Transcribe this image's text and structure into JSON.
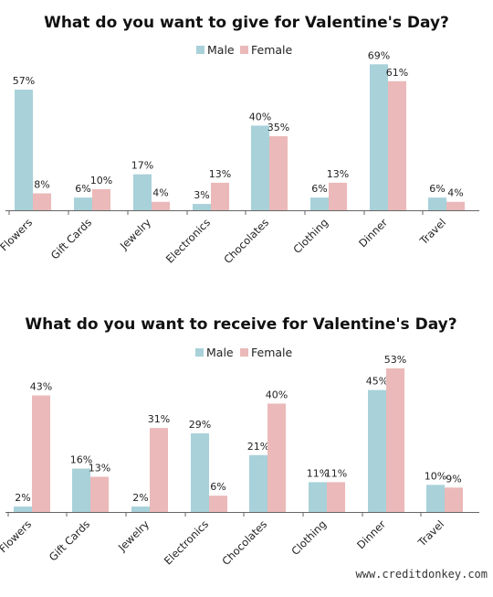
{
  "colors": {
    "male": "#a8d1d9",
    "female": "#ebb9b9"
  },
  "legend": {
    "male": "Male",
    "female": "Female"
  },
  "watermark": "www.creditdonkey.com",
  "chart_data": [
    {
      "type": "bar",
      "title": "What do you want to give for Valentine's Day?",
      "categories": [
        "Flowers",
        "Gift Cards",
        "Jewelry",
        "Electronics",
        "Chocolates",
        "Clothing",
        "Dinner",
        "Travel"
      ],
      "series": [
        {
          "name": "Male",
          "values": [
            57,
            6,
            17,
            3,
            40,
            6,
            69,
            6
          ]
        },
        {
          "name": "Female",
          "values": [
            8,
            10,
            4,
            13,
            35,
            13,
            61,
            4
          ]
        }
      ],
      "value_suffix": "%",
      "ylim": [
        0,
        70
      ],
      "grid": false,
      "legend_position": "top-center"
    },
    {
      "type": "bar",
      "title": "What do you want to receive for Valentine's Day?",
      "categories": [
        "Flowers",
        "Gift Cards",
        "Jewelry",
        "Electronics",
        "Chocolates",
        "Clothing",
        "Dinner",
        "Travel"
      ],
      "series": [
        {
          "name": "Male",
          "values": [
            2,
            16,
            2,
            29,
            21,
            11,
            45,
            10
          ]
        },
        {
          "name": "Female",
          "values": [
            43,
            13,
            31,
            6,
            40,
            11,
            53,
            9
          ]
        }
      ],
      "value_suffix": "%",
      "ylim": [
        0,
        55
      ],
      "grid": false,
      "legend_position": "top-center"
    }
  ]
}
